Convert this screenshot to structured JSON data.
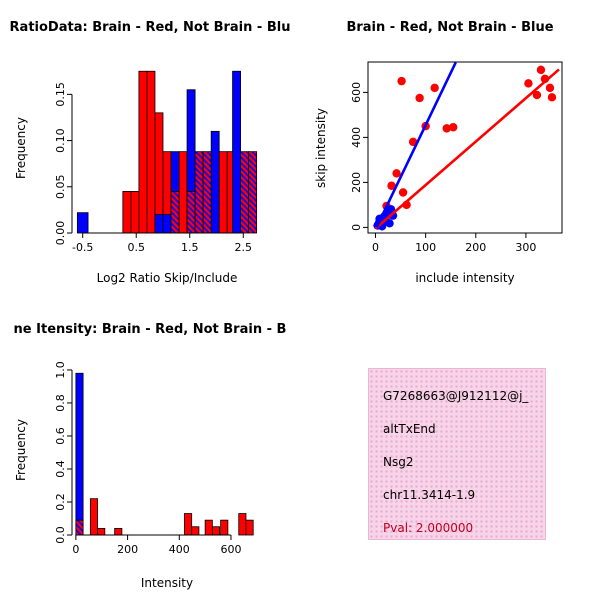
{
  "colors": {
    "brain": "#ff0000",
    "not_brain": "#0000ff",
    "axis": "#000000",
    "pval_text": "#c00020",
    "info_bg": "#f7d4e8",
    "info_dot": "#e9a8cf"
  },
  "chart_data": [
    {
      "name": "ratio_histogram",
      "type": "bar",
      "title": "RatioData: Brain - Red, Not Brain - Blu",
      "xlabel": "Log2 Ratio Skip/Include",
      "ylabel": "Frequency",
      "xlim": [
        -0.7,
        2.85
      ],
      "ylim": [
        0,
        0.185
      ],
      "xticks": [
        -0.5,
        0.5,
        1.5,
        2.5
      ],
      "xtick_labels": [
        "-0.5",
        "0.5",
        "1.5",
        "2.5"
      ],
      "yticks": [
        0,
        0.05,
        0.1,
        0.15
      ],
      "ytick_labels": [
        "0.00",
        "0.05",
        "0.10",
        "0.15"
      ],
      "grid": false,
      "legend": "none",
      "series_legend": {
        "brain": "red",
        "not_brain": "blue",
        "overlap": "purple-hatched"
      },
      "bars": [
        {
          "x": -0.6,
          "w": 0.2,
          "h": 0.022,
          "series": "not_brain"
        },
        {
          "x": 0.25,
          "w": 0.15,
          "h": 0.045,
          "series": "brain"
        },
        {
          "x": 0.4,
          "w": 0.15,
          "h": 0.045,
          "series": "brain"
        },
        {
          "x": 0.55,
          "w": 0.15,
          "h": 0.175,
          "series": "brain"
        },
        {
          "x": 0.7,
          "w": 0.15,
          "h": 0.175,
          "series": "brain"
        },
        {
          "x": 0.85,
          "w": 0.15,
          "h": 0.13,
          "series": "brain"
        },
        {
          "x": 0.85,
          "w": 0.15,
          "h": 0.02,
          "series": "not_brain"
        },
        {
          "x": 1.0,
          "w": 0.15,
          "h": 0.088,
          "series": "brain"
        },
        {
          "x": 1.0,
          "w": 0.15,
          "h": 0.02,
          "series": "not_brain"
        },
        {
          "x": 1.15,
          "w": 0.15,
          "h": 0.088,
          "series": "not_brain"
        },
        {
          "x": 1.15,
          "w": 0.15,
          "h": 0.045,
          "series": "overlap"
        },
        {
          "x": 1.3,
          "w": 0.15,
          "h": 0.088,
          "series": "brain"
        },
        {
          "x": 1.45,
          "w": 0.15,
          "h": 0.155,
          "series": "not_brain"
        },
        {
          "x": 1.45,
          "w": 0.15,
          "h": 0.045,
          "series": "overlap"
        },
        {
          "x": 1.6,
          "w": 0.15,
          "h": 0.088,
          "series": "overlap"
        },
        {
          "x": 1.75,
          "w": 0.15,
          "h": 0.088,
          "series": "overlap"
        },
        {
          "x": 1.9,
          "w": 0.15,
          "h": 0.11,
          "series": "not_brain"
        },
        {
          "x": 2.05,
          "w": 0.15,
          "h": 0.088,
          "series": "brain"
        },
        {
          "x": 2.2,
          "w": 0.15,
          "h": 0.088,
          "series": "brain"
        },
        {
          "x": 2.3,
          "w": 0.15,
          "h": 0.175,
          "series": "not_brain"
        },
        {
          "x": 2.45,
          "w": 0.15,
          "h": 0.088,
          "series": "overlap"
        },
        {
          "x": 2.6,
          "w": 0.15,
          "h": 0.088,
          "series": "overlap"
        }
      ]
    },
    {
      "name": "intensity_scatter",
      "type": "scatter",
      "title": "Brain - Red, Not Brain - Blue",
      "xlabel": "include intensity",
      "ylabel": "skip intensity",
      "xlim": [
        -15,
        372
      ],
      "ylim": [
        -25,
        735
      ],
      "xticks": [
        0,
        100,
        200,
        300
      ],
      "xtick_labels": [
        "0",
        "100",
        "200",
        "300"
      ],
      "yticks": [
        0,
        200,
        400,
        600
      ],
      "ytick_labels": [
        "0",
        "200",
        "400",
        "600"
      ],
      "grid": false,
      "legend": "none",
      "series": [
        {
          "name": "brain",
          "points": [
            [
              22,
              95
            ],
            [
              32,
              185
            ],
            [
              42,
              240
            ],
            [
              55,
              155
            ],
            [
              62,
              100
            ],
            [
              75,
              380
            ],
            [
              100,
              450
            ],
            [
              52,
              650
            ],
            [
              88,
              575
            ],
            [
              118,
              620
            ],
            [
              142,
              440
            ],
            [
              155,
              445
            ],
            [
              305,
              640
            ],
            [
              322,
              588
            ],
            [
              330,
              700
            ],
            [
              338,
              660
            ],
            [
              348,
              620
            ],
            [
              352,
              578
            ]
          ]
        },
        {
          "name": "not_brain",
          "points": [
            [
              4,
              8
            ],
            [
              7,
              20
            ],
            [
              10,
              14
            ],
            [
              12,
              32
            ],
            [
              15,
              25
            ],
            [
              17,
              48
            ],
            [
              20,
              40
            ],
            [
              22,
              58
            ],
            [
              25,
              66
            ],
            [
              28,
              18
            ],
            [
              31,
              80
            ],
            [
              8,
              38
            ],
            [
              13,
              5
            ],
            [
              35,
              52
            ]
          ]
        }
      ],
      "fit_lines": [
        {
          "series": "brain",
          "x1": 0,
          "y1": -5,
          "x2": 366,
          "y2": 702
        },
        {
          "series": "not_brain",
          "x1": 2,
          "y1": 0,
          "x2": 160,
          "y2": 733
        }
      ]
    },
    {
      "name": "gene_intensity_histogram",
      "type": "bar",
      "title": "ne Itensity: Brain - Red, Not Brain - B",
      "xlabel": "Intensity",
      "ylabel": "Frequency",
      "xlim": [
        -15,
        720
      ],
      "ylim": [
        0,
        1.03
      ],
      "xticks": [
        0,
        200,
        400,
        600
      ],
      "xtick_labels": [
        "0",
        "200",
        "400",
        "600"
      ],
      "yticks": [
        0,
        0.2,
        0.4,
        0.6,
        0.8,
        1.0
      ],
      "ytick_labels": [
        "0.0",
        "0.2",
        "0.4",
        "0.6",
        "0.8",
        "1.0"
      ],
      "grid": false,
      "legend": "none",
      "bars": [
        {
          "x": 0,
          "w": 28,
          "h": 0.98,
          "series": "not_brain"
        },
        {
          "x": 0,
          "w": 28,
          "h": 0.09,
          "series": "overlap"
        },
        {
          "x": 56,
          "w": 28,
          "h": 0.22,
          "series": "brain"
        },
        {
          "x": 84,
          "w": 28,
          "h": 0.04,
          "series": "brain"
        },
        {
          "x": 150,
          "w": 28,
          "h": 0.04,
          "series": "brain"
        },
        {
          "x": 420,
          "w": 28,
          "h": 0.13,
          "series": "brain"
        },
        {
          "x": 448,
          "w": 28,
          "h": 0.05,
          "series": "brain"
        },
        {
          "x": 500,
          "w": 28,
          "h": 0.09,
          "series": "brain"
        },
        {
          "x": 528,
          "w": 28,
          "h": 0.05,
          "series": "brain"
        },
        {
          "x": 560,
          "w": 28,
          "h": 0.09,
          "series": "brain"
        },
        {
          "x": 630,
          "w": 28,
          "h": 0.13,
          "series": "brain"
        },
        {
          "x": 658,
          "w": 28,
          "h": 0.09,
          "series": "brain"
        }
      ]
    }
  ],
  "info_panel": {
    "id": "G7268663@J912112@j_",
    "event_type": "altTxEnd",
    "gene": "Nsg2",
    "locus": "chr11.3414-1.9",
    "pval": "Pval: 2.000000"
  }
}
